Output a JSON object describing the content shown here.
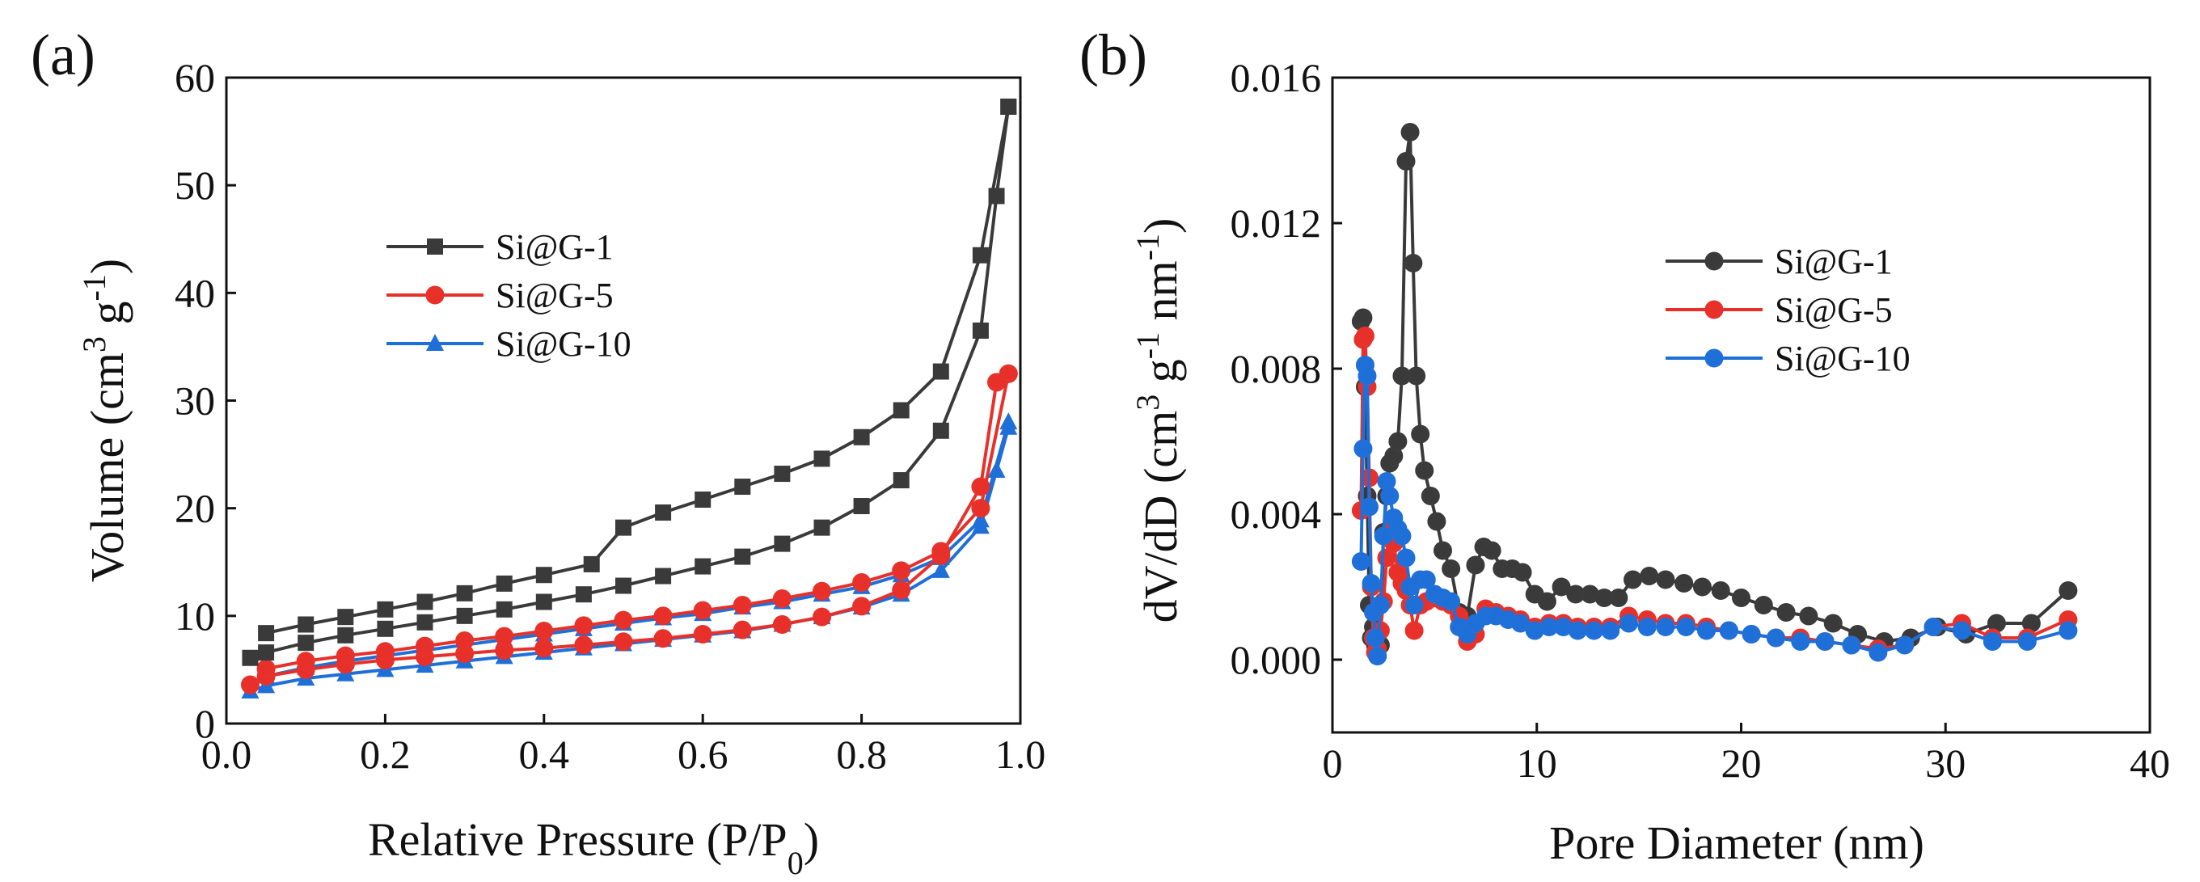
{
  "chart_data": [
    {
      "type": "line",
      "panel_label": "(a)",
      "xlabel": "Relative Pressure (P/P",
      "xlabel_sub": "0",
      "xlabel_tail": ")",
      "ylabel": "Volume (cm",
      "ylabel_sup1": "3",
      "ylabel_mid": " g",
      "ylabel_sup2": "-1",
      "ylabel_tail": ")",
      "xlim": [
        0.0,
        1.0
      ],
      "ylim": [
        0,
        60
      ],
      "xticks": [
        "0.0",
        "0.2",
        "0.4",
        "0.6",
        "0.8",
        "1.0"
      ],
      "xtick_values": [
        0.0,
        0.2,
        0.4,
        0.6,
        0.8,
        1.0
      ],
      "yticks": [
        "0",
        "10",
        "20",
        "30",
        "40",
        "50",
        "60"
      ],
      "ytick_values": [
        0,
        10,
        20,
        30,
        40,
        50,
        60
      ],
      "legend_position": "upper-left",
      "series": [
        {
          "name": "Si@G-1",
          "color": "#3a3a3a",
          "marker": "square",
          "adsorption": {
            "x": [
              0.03,
              0.05,
              0.1,
              0.15,
              0.2,
              0.25,
              0.3,
              0.35,
              0.4,
              0.45,
              0.5,
              0.55,
              0.6,
              0.65,
              0.7,
              0.75,
              0.8,
              0.85,
              0.9,
              0.95,
              0.97,
              0.985
            ],
            "y": [
              6.1,
              6.6,
              7.5,
              8.2,
              8.8,
              9.4,
              10.0,
              10.6,
              11.3,
              12.0,
              12.8,
              13.7,
              14.6,
              15.5,
              16.7,
              18.2,
              20.2,
              22.6,
              27.2,
              36.5,
              49.0,
              57.3
            ]
          },
          "desorption": {
            "x": [
              0.985,
              0.95,
              0.9,
              0.85,
              0.8,
              0.75,
              0.7,
              0.65,
              0.6,
              0.55,
              0.5,
              0.46,
              0.4,
              0.35,
              0.3,
              0.25,
              0.2,
              0.15,
              0.1,
              0.05
            ],
            "y": [
              57.3,
              43.5,
              32.7,
              29.1,
              26.6,
              24.6,
              23.2,
              22.0,
              20.8,
              19.6,
              18.2,
              14.8,
              13.8,
              13.0,
              12.1,
              11.3,
              10.6,
              9.9,
              9.2,
              8.4
            ]
          }
        },
        {
          "name": "Si@G-5",
          "color": "#e8302a",
          "marker": "circle",
          "adsorption": {
            "x": [
              0.03,
              0.05,
              0.1,
              0.15,
              0.2,
              0.25,
              0.3,
              0.35,
              0.4,
              0.45,
              0.5,
              0.55,
              0.6,
              0.65,
              0.7,
              0.75,
              0.8,
              0.85,
              0.9,
              0.95,
              0.97,
              0.985
            ],
            "y": [
              3.6,
              4.4,
              5.0,
              5.5,
              5.9,
              6.2,
              6.5,
              6.8,
              7.0,
              7.3,
              7.6,
              7.9,
              8.3,
              8.7,
              9.2,
              9.9,
              10.9,
              12.4,
              15.6,
              22.0,
              31.7,
              32.5
            ]
          },
          "desorption": {
            "x": [
              0.985,
              0.95,
              0.9,
              0.85,
              0.8,
              0.75,
              0.7,
              0.65,
              0.6,
              0.55,
              0.5,
              0.45,
              0.4,
              0.35,
              0.3,
              0.25,
              0.2,
              0.15,
              0.1,
              0.05
            ],
            "y": [
              32.5,
              20.0,
              16.0,
              14.2,
              13.1,
              12.3,
              11.6,
              11.0,
              10.5,
              10.0,
              9.6,
              9.1,
              8.6,
              8.1,
              7.7,
              7.2,
              6.7,
              6.3,
              5.8,
              5.1
            ]
          }
        },
        {
          "name": "Si@G-10",
          "color": "#1f6fd8",
          "marker": "triangle",
          "adsorption": {
            "x": [
              0.03,
              0.05,
              0.1,
              0.15,
              0.2,
              0.25,
              0.3,
              0.35,
              0.4,
              0.45,
              0.5,
              0.55,
              0.6,
              0.65,
              0.7,
              0.75,
              0.8,
              0.85,
              0.9,
              0.95,
              0.97,
              0.985
            ],
            "y": [
              3.0,
              3.5,
              4.2,
              4.6,
              5.0,
              5.4,
              5.8,
              6.2,
              6.6,
              7.0,
              7.4,
              7.8,
              8.2,
              8.6,
              9.2,
              9.9,
              10.8,
              12.0,
              14.2,
              18.3,
              23.5,
              27.5
            ]
          },
          "desorption": {
            "x": [
              0.985,
              0.95,
              0.9,
              0.85,
              0.8,
              0.75,
              0.7,
              0.65,
              0.6,
              0.55,
              0.5,
              0.45,
              0.4,
              0.35,
              0.3,
              0.25,
              0.2,
              0.15,
              0.1,
              0.05
            ],
            "y": [
              28.0,
              18.9,
              15.4,
              13.8,
              12.7,
              12.0,
              11.3,
              10.8,
              10.2,
              9.8,
              9.3,
              8.8,
              8.3,
              7.8,
              7.3,
              6.8,
              6.3,
              5.8,
              5.2,
              4.4
            ]
          }
        }
      ]
    },
    {
      "type": "line",
      "panel_label": "(b)",
      "xlabel": "Pore Diameter (nm)",
      "ylabel": "dV/dD (cm",
      "ylabel_sup1": "3",
      "ylabel_mid": " g",
      "ylabel_sup2": "-1",
      "ylabel_mid2": " nm",
      "ylabel_sup3": "-1",
      "ylabel_tail": ")",
      "xlim": [
        0,
        40
      ],
      "ylim": [
        -0.002,
        0.016
      ],
      "xticks": [
        "0",
        "10",
        "20",
        "30",
        "40"
      ],
      "xtick_values": [
        0,
        10,
        20,
        30,
        40
      ],
      "yticks": [
        "0.000",
        "0.004",
        "0.008",
        "0.012",
        "0.016"
      ],
      "ytick_values": [
        0.0,
        0.004,
        0.008,
        0.012,
        0.016
      ],
      "legend_position": "upper-right",
      "series": [
        {
          "name": "Si@G-1",
          "color": "#3a3a3a",
          "marker": "circle",
          "x": [
            1.4,
            1.5,
            1.6,
            1.7,
            1.8,
            1.9,
            2.0,
            2.1,
            2.2,
            2.35,
            2.5,
            2.65,
            2.8,
            3.0,
            3.2,
            3.4,
            3.6,
            3.8,
            3.95,
            4.1,
            4.3,
            4.5,
            4.8,
            5.1,
            5.4,
            5.8,
            6.2,
            6.6,
            7.0,
            7.4,
            7.8,
            8.3,
            8.8,
            9.3,
            9.9,
            10.5,
            11.2,
            11.9,
            12.6,
            13.3,
            14.0,
            14.7,
            15.5,
            16.3,
            17.2,
            18.1,
            19.0,
            20.0,
            21.1,
            22.2,
            23.3,
            24.5,
            25.7,
            27.0,
            28.3,
            29.6,
            31.0,
            32.5,
            34.2,
            36.0
          ],
          "y": [
            0.0093,
            0.0094,
            0.0075,
            0.0045,
            0.0015,
            0.0006,
            0.0009,
            0.0004,
            0.0001,
            0.0004,
            0.0035,
            0.0045,
            0.0054,
            0.0056,
            0.006,
            0.0078,
            0.0137,
            0.0145,
            0.0109,
            0.0078,
            0.0062,
            0.0052,
            0.0045,
            0.0038,
            0.003,
            0.0025,
            0.0013,
            0.0012,
            0.0026,
            0.0031,
            0.003,
            0.0025,
            0.0025,
            0.0024,
            0.0018,
            0.0016,
            0.002,
            0.0018,
            0.0018,
            0.0017,
            0.0017,
            0.0022,
            0.0023,
            0.0022,
            0.0021,
            0.002,
            0.0019,
            0.0017,
            0.0015,
            0.0013,
            0.0012,
            0.001,
            0.0007,
            0.0005,
            0.0006,
            0.0009,
            0.0007,
            0.001,
            0.001,
            0.0019
          ]
        },
        {
          "name": "Si@G-5",
          "color": "#e8302a",
          "marker": "circle",
          "x": [
            1.4,
            1.5,
            1.6,
            1.7,
            1.8,
            1.9,
            2.0,
            2.1,
            2.2,
            2.35,
            2.5,
            2.65,
            2.8,
            3.0,
            3.2,
            3.4,
            3.6,
            3.8,
            4.0,
            4.3,
            4.6,
            5.0,
            5.4,
            5.8,
            6.2,
            6.6,
            7.0,
            7.5,
            8.0,
            8.6,
            9.2,
            9.9,
            10.6,
            11.3,
            12.0,
            12.8,
            13.6,
            14.5,
            15.4,
            16.3,
            17.3,
            18.3,
            19.4,
            20.5,
            21.7,
            22.9,
            24.1,
            25.4,
            26.7,
            28.0,
            29.4,
            30.8,
            32.3,
            34.0,
            36.0
          ],
          "y": [
            0.0041,
            0.0088,
            0.0089,
            0.0075,
            0.005,
            0.002,
            0.0006,
            0.0002,
            0.0003,
            0.0008,
            0.0016,
            0.0028,
            0.0035,
            0.0032,
            0.0024,
            0.0021,
            0.0019,
            0.0015,
            0.0008,
            0.0015,
            0.0016,
            0.0017,
            0.0016,
            0.0015,
            0.0012,
            0.0005,
            0.0007,
            0.0014,
            0.0013,
            0.0012,
            0.0011,
            0.0009,
            0.001,
            0.001,
            0.0009,
            0.0009,
            0.0009,
            0.0012,
            0.0011,
            0.001,
            0.001,
            0.0009,
            0.0008,
            0.0007,
            0.0006,
            0.0006,
            0.0005,
            0.0004,
            0.0003,
            0.0004,
            0.0009,
            0.001,
            0.0006,
            0.0006,
            0.0011
          ]
        },
        {
          "name": "Si@G-10",
          "color": "#1f6fd8",
          "marker": "circle",
          "x": [
            1.4,
            1.5,
            1.6,
            1.7,
            1.8,
            1.9,
            2.0,
            2.1,
            2.2,
            2.35,
            2.5,
            2.65,
            2.8,
            3.0,
            3.2,
            3.4,
            3.6,
            3.8,
            4.0,
            4.3,
            4.6,
            5.0,
            5.4,
            5.8,
            6.2,
            6.6,
            7.0,
            7.5,
            8.0,
            8.6,
            9.2,
            9.9,
            10.6,
            11.3,
            12.0,
            12.8,
            13.6,
            14.5,
            15.4,
            16.3,
            17.3,
            18.3,
            19.4,
            20.5,
            21.7,
            22.9,
            24.1,
            25.4,
            26.7,
            28.0,
            29.4,
            30.8,
            32.3,
            34.0,
            36.0
          ],
          "y": [
            0.0027,
            0.0058,
            0.0081,
            0.0078,
            0.0042,
            0.0021,
            0.0013,
            0.0006,
            0.0001,
            0.0015,
            0.0034,
            0.0049,
            0.0045,
            0.0039,
            0.0036,
            0.0034,
            0.0028,
            0.002,
            0.0015,
            0.0022,
            0.0022,
            0.0018,
            0.0017,
            0.0016,
            0.0009,
            0.0007,
            0.001,
            0.0012,
            0.0012,
            0.0011,
            0.001,
            0.0008,
            0.0009,
            0.0009,
            0.0008,
            0.0008,
            0.0008,
            0.001,
            0.0009,
            0.0009,
            0.0009,
            0.0008,
            0.0008,
            0.0007,
            0.0006,
            0.0005,
            0.0005,
            0.0004,
            0.0002,
            0.0004,
            0.0009,
            0.0008,
            0.0005,
            0.0005,
            0.0008
          ]
        }
      ]
    }
  ]
}
